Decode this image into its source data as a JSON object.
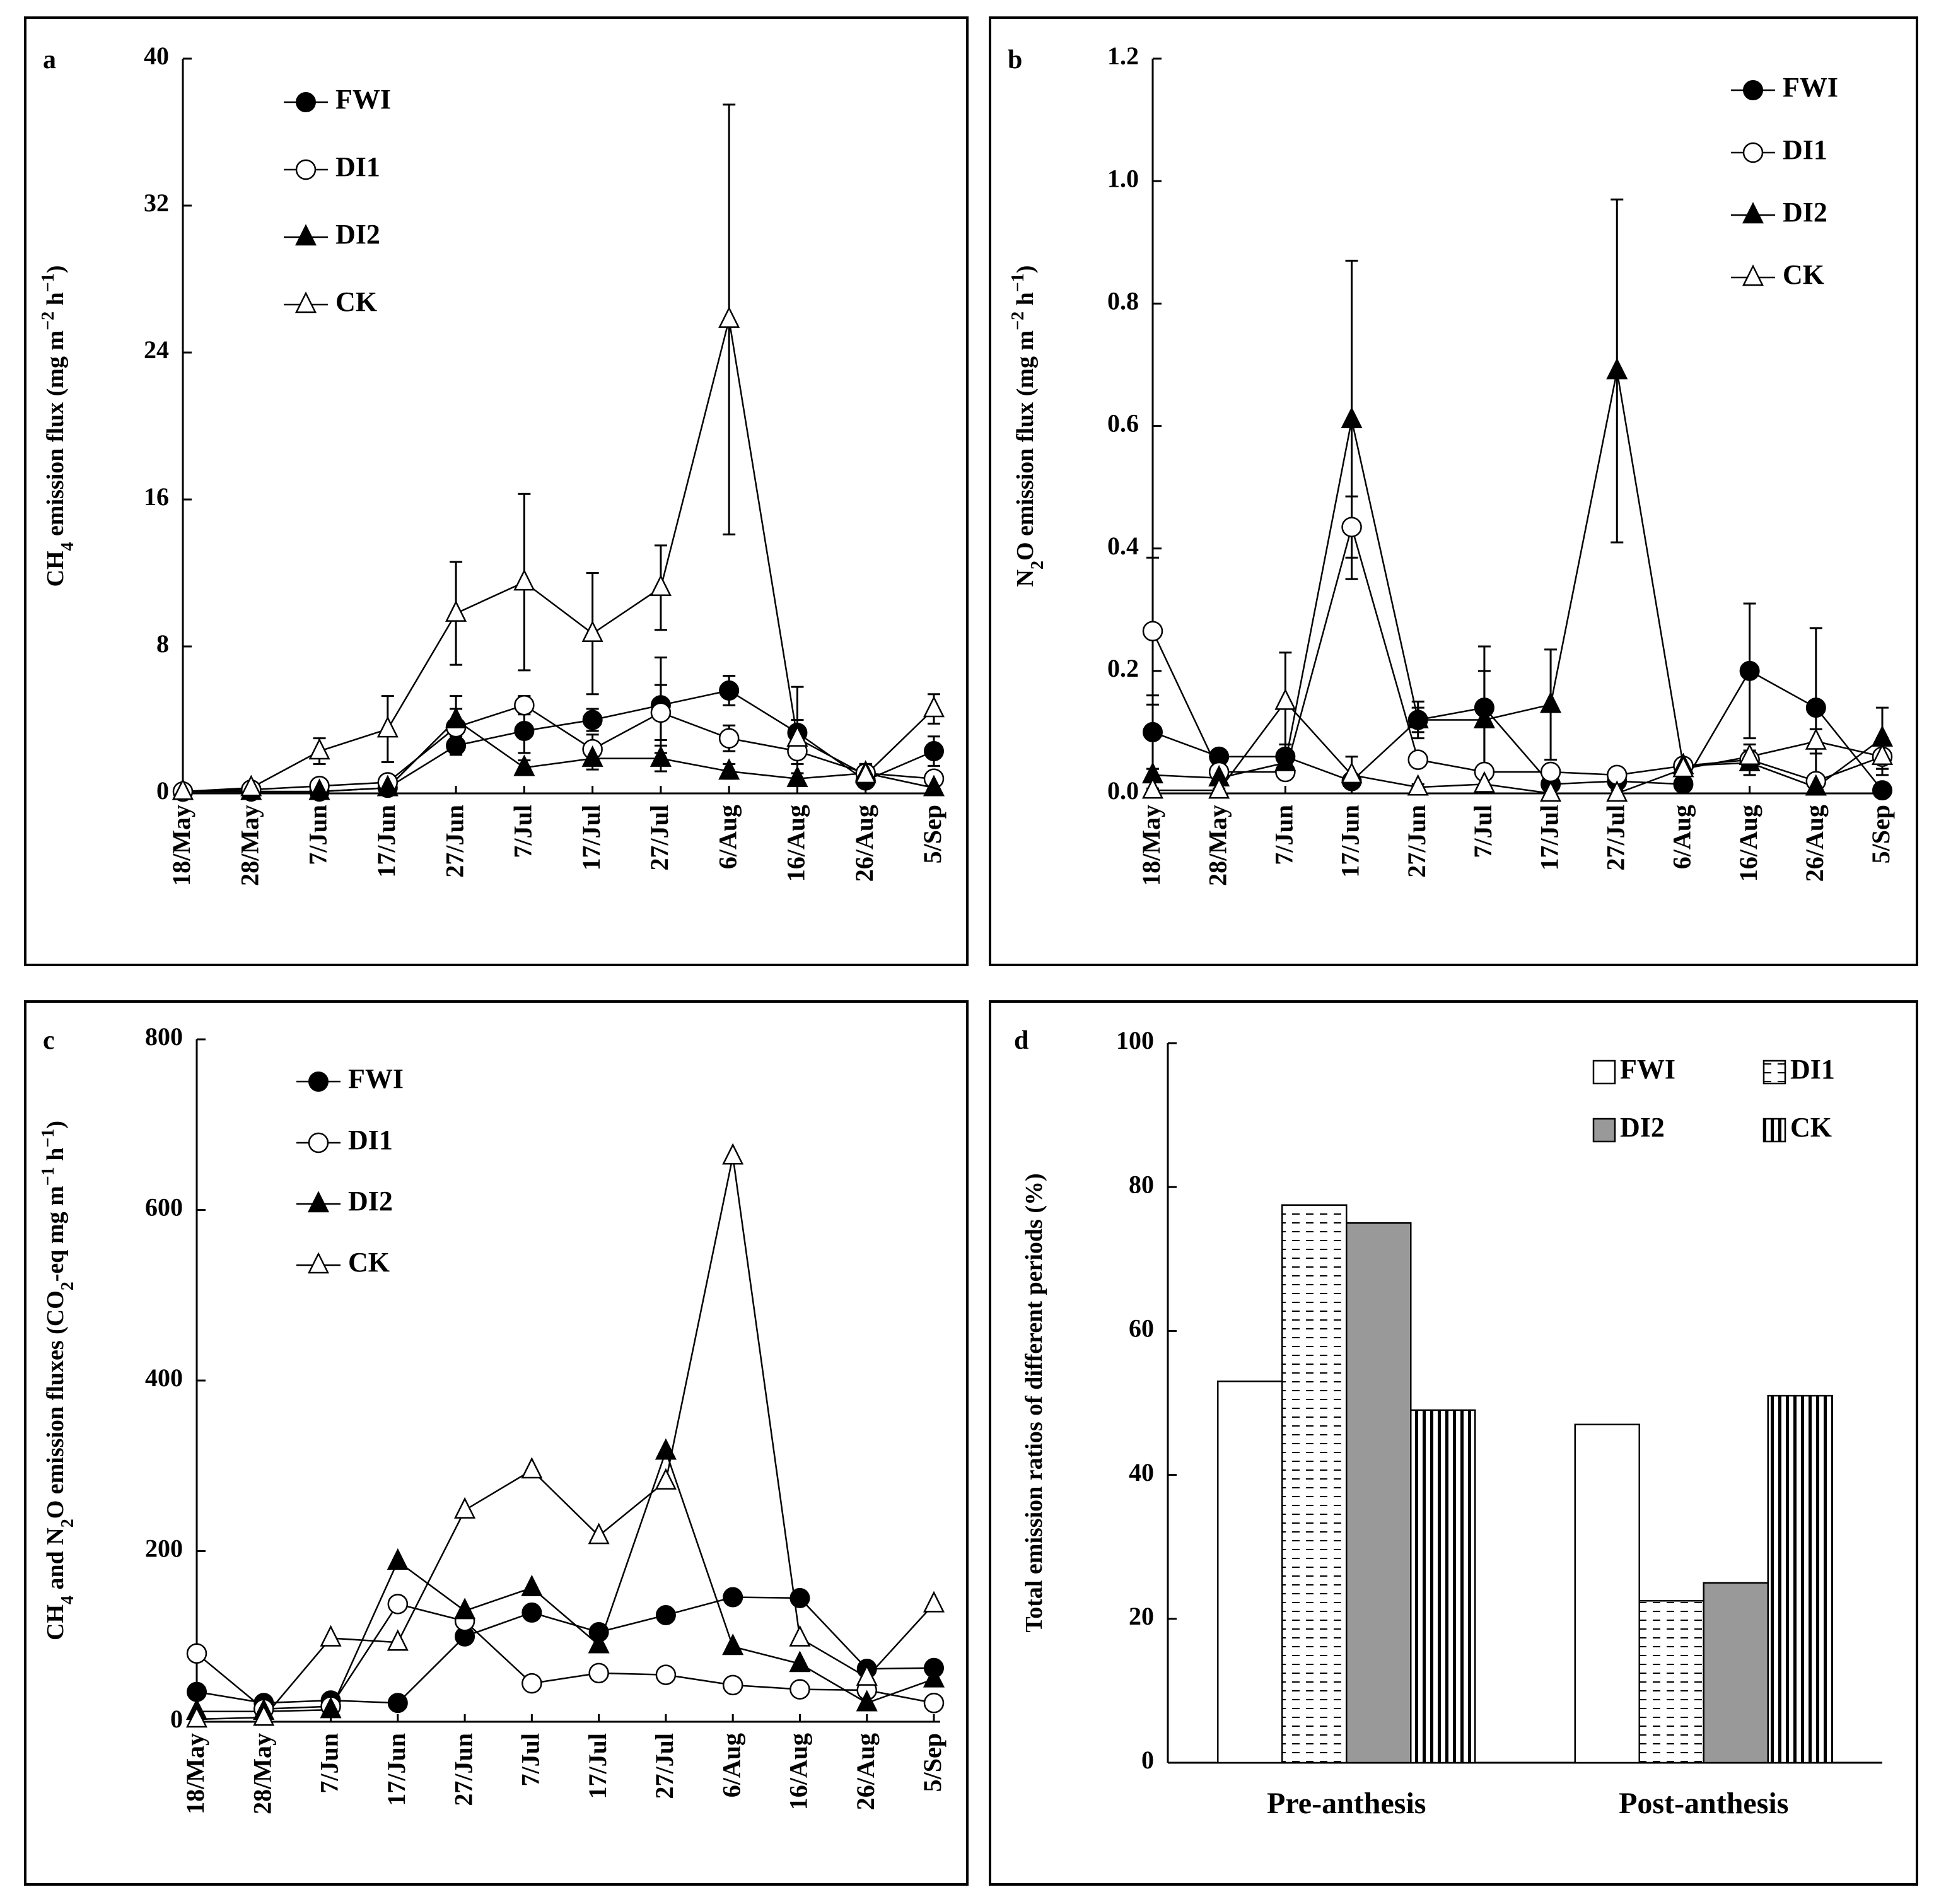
{
  "chart_data": [
    {
      "id": "a",
      "type": "line",
      "panel_label": "a",
      "ylabel_prefix": "CH",
      "ylabel_sub": "4",
      "ylabel_mid": " emission flux (mg m",
      "ylabel_sup1": "−2",
      "ylabel_mid2": " h",
      "ylabel_sup2": "−1",
      "ylabel_end": ")",
      "ylim": [
        0,
        40
      ],
      "yticks": [
        "0",
        "8",
        "16",
        "24",
        "32",
        "40"
      ],
      "categories": [
        "18/May",
        "28/May",
        "7/Jun",
        "17/Jun",
        "27/Jun",
        "7/Jul",
        "17/Jul",
        "27/Jul",
        "6/Aug",
        "16/Aug",
        "26/Aug",
        "5/Sep"
      ],
      "legend_position": "top-left",
      "series": [
        {
          "name": "FWI",
          "marker": "circle-filled",
          "values": [
            0.1,
            0.1,
            0.1,
            0.3,
            2.6,
            3.4,
            4.0,
            4.8,
            5.6,
            3.3,
            0.7,
            2.3
          ],
          "errors": [
            0.05,
            0.05,
            0.1,
            0.2,
            0.5,
            1.2,
            0.6,
            2.6,
            0.8,
            2.5,
            0.3,
            0.8
          ]
        },
        {
          "name": "DI1",
          "marker": "circle-open",
          "values": [
            0.1,
            0.2,
            0.4,
            0.6,
            3.6,
            4.8,
            2.4,
            4.4,
            3.0,
            2.3,
            1.1,
            0.8
          ],
          "errors": [
            0.05,
            0.05,
            0.2,
            0.3,
            1.0,
            0.5,
            0.8,
            1.5,
            0.7,
            0.7,
            0.5,
            0.3
          ]
        },
        {
          "name": "DI2",
          "marker": "triangle-filled",
          "values": [
            0.1,
            0.1,
            0.1,
            0.3,
            4.0,
            1.4,
            1.9,
            1.9,
            1.2,
            0.8,
            1.1,
            0.3
          ],
          "errors": [
            0.05,
            0.05,
            0.1,
            0.2,
            1.3,
            0.4,
            0.6,
            0.7,
            0.4,
            0.3,
            0.4,
            0.2
          ]
        },
        {
          "name": "CK",
          "marker": "triangle-open",
          "values": [
            0.1,
            0.3,
            2.3,
            3.5,
            9.8,
            11.5,
            8.7,
            11.2,
            25.8,
            3.0,
            1.0,
            4.6
          ],
          "errors": [
            0.05,
            0.1,
            0.7,
            1.8,
            2.8,
            4.8,
            3.3,
            2.3,
            11.7,
            1.0,
            0.6,
            0.8
          ]
        }
      ]
    },
    {
      "id": "b",
      "type": "line",
      "panel_label": "b",
      "ylabel_prefix": "N",
      "ylabel_sub": "2",
      "ylabel_mid": "O emission flux (mg m",
      "ylabel_sup1": "−2",
      "ylabel_mid2": " h",
      "ylabel_sup2": "−1",
      "ylabel_end": ")",
      "ylim": [
        0,
        1.2
      ],
      "yticks": [
        "0.0",
        "0.2",
        "0.4",
        "0.6",
        "0.8",
        "1.0",
        "1.2"
      ],
      "categories": [
        "18/May",
        "28/May",
        "7/Jun",
        "17/Jun",
        "27/Jun",
        "7/Jul",
        "17/Jul",
        "27/Jul",
        "6/Aug",
        "16/Aug",
        "26/Aug",
        "5/Sep"
      ],
      "legend_position": "top-right",
      "series": [
        {
          "name": "FWI",
          "marker": "circle-filled",
          "values": [
            0.1,
            0.06,
            0.06,
            0.02,
            0.12,
            0.14,
            0.015,
            0.02,
            0.015,
            0.2,
            0.14,
            0.005
          ],
          "errors": [
            0.06,
            0.01,
            0.02,
            0.01,
            0.03,
            0.1,
            0.01,
            0.01,
            0.01,
            0.11,
            0.13,
            0.005
          ]
        },
        {
          "name": "DI1",
          "marker": "circle-open",
          "values": [
            0.265,
            0.035,
            0.035,
            0.435,
            0.055,
            0.035,
            0.035,
            0.03,
            0.045,
            0.055,
            0.02,
            0.06
          ],
          "errors": [
            0.12,
            0.01,
            0.01,
            0.05,
            0.01,
            0.01,
            0.01,
            0.01,
            0.01,
            0.01,
            0.01,
            0.02
          ]
        },
        {
          "name": "DI2",
          "marker": "triangle-filled",
          "values": [
            0.03,
            0.025,
            0.05,
            0.61,
            0.12,
            0.12,
            0.145,
            0.69,
            0.045,
            0.05,
            0.01,
            0.09
          ],
          "errors": [
            0.01,
            0.01,
            0.02,
            0.26,
            0.02,
            0.08,
            0.09,
            0.28,
            0.01,
            0.02,
            0.02,
            0.05
          ]
        },
        {
          "name": "CK",
          "marker": "triangle-open",
          "values": [
            0.005,
            0.005,
            0.15,
            0.03,
            0.01,
            0.015,
            0.0,
            0.0,
            0.04,
            0.06,
            0.085,
            0.06
          ],
          "errors": [
            0.003,
            0.003,
            0.08,
            0.03,
            0.005,
            0.01,
            0.005,
            0.005,
            0.01,
            0.02,
            0.02,
            0.03
          ]
        }
      ]
    },
    {
      "id": "c",
      "type": "line",
      "panel_label": "c",
      "ylabel_prefix": "CH",
      "ylabel_sub": "4",
      "ylabel_mid": " and N",
      "ylabel_sub_b": "2",
      "ylabel_mid_b": "O emission fluxes (CO",
      "ylabel_sub_c": "2",
      "ylabel_mid_c": "-eq mg m",
      "ylabel_sup1": "−1",
      "ylabel_mid2": " h",
      "ylabel_sup2": "−1",
      "ylabel_end": ")",
      "ylim": [
        0,
        800
      ],
      "yticks": [
        "0",
        "200",
        "400",
        "600",
        "800"
      ],
      "categories": [
        "18/May",
        "28/May",
        "7/Jun",
        "17/Jun",
        "27/Jun",
        "7/Jul",
        "17/Jul",
        "27/Jul",
        "6/Aug",
        "16/Aug",
        "26/Aug",
        "5/Sep"
      ],
      "legend_position": "top-left",
      "series": [
        {
          "name": "FWI",
          "marker": "circle-filled",
          "values": [
            35,
            22,
            25,
            22,
            100,
            128,
            105,
            125,
            146,
            145,
            62,
            63
          ]
        },
        {
          "name": "DI1",
          "marker": "circle-open",
          "values": [
            80,
            15,
            18,
            138,
            118,
            45,
            57,
            55,
            43,
            38,
            37,
            22
          ]
        },
        {
          "name": "DI2",
          "marker": "triangle-filled",
          "values": [
            12,
            12,
            14,
            188,
            130,
            157,
            90,
            317,
            88,
            68,
            22,
            50
          ]
        },
        {
          "name": "CK",
          "marker": "triangle-open",
          "values": [
            3,
            5,
            98,
            93,
            248,
            295,
            218,
            282,
            663,
            98,
            52,
            138
          ]
        }
      ]
    },
    {
      "id": "d",
      "type": "bar",
      "panel_label": "d",
      "ylabel": "Total emission ratios of different periods (%)",
      "ylim": [
        0,
        100
      ],
      "yticks": [
        "0",
        "20",
        "40",
        "60",
        "80",
        "100"
      ],
      "categories": [
        "Pre-anthesis",
        "Post-anthesis"
      ],
      "legend_position": "top-right",
      "series": [
        {
          "name": "FWI",
          "pattern": "white",
          "values": [
            53,
            47
          ]
        },
        {
          "name": "DI1",
          "pattern": "dashes",
          "values": [
            77.5,
            22.5
          ]
        },
        {
          "name": "DI2",
          "pattern": "gray",
          "values": [
            75,
            25
          ]
        },
        {
          "name": "CK",
          "pattern": "vertical-stripes",
          "values": [
            49,
            51
          ]
        }
      ]
    }
  ]
}
